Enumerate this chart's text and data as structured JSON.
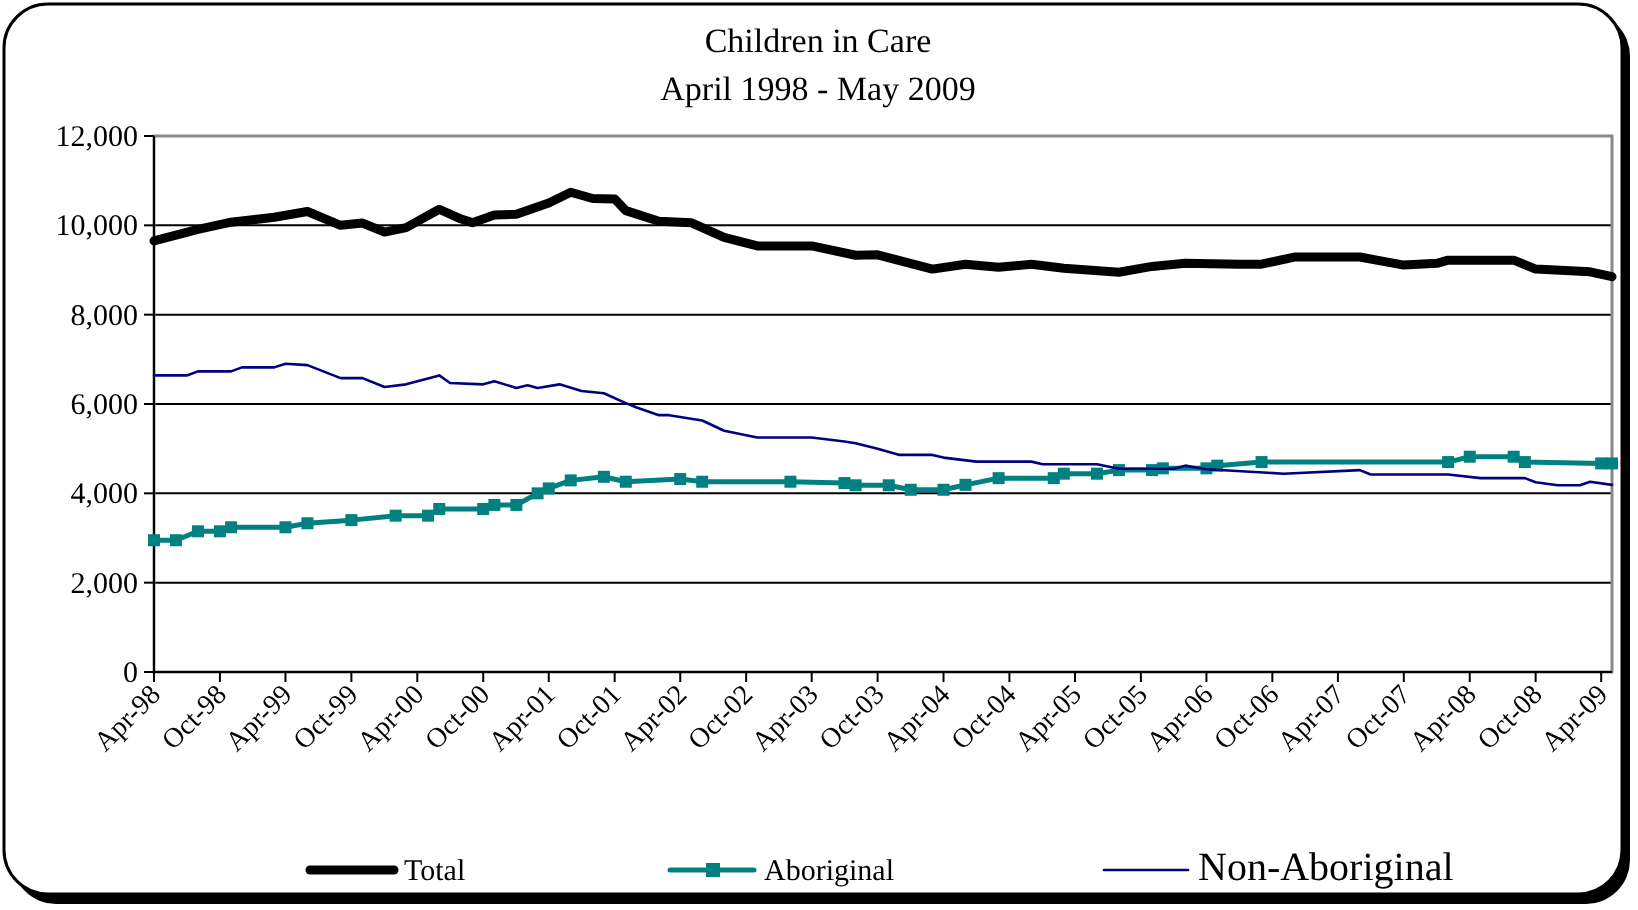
{
  "chart_data": {
    "type": "line",
    "title": "Children in Care",
    "subtitle": "April 1998 - May 2009",
    "xlim": [
      "1998-04",
      "2009-05"
    ],
    "xticks": [
      {
        "value": "1998-04",
        "label": "Apr-98"
      },
      {
        "value": "1998-10",
        "label": "Oct-98"
      },
      {
        "value": "1999-04",
        "label": "Apr-99"
      },
      {
        "value": "1999-10",
        "label": "Oct-99"
      },
      {
        "value": "2000-04",
        "label": "Apr-00"
      },
      {
        "value": "2000-10",
        "label": "Oct-00"
      },
      {
        "value": "2001-04",
        "label": "Apr-01"
      },
      {
        "value": "2001-10",
        "label": "Oct-01"
      },
      {
        "value": "2002-04",
        "label": "Apr-02"
      },
      {
        "value": "2002-10",
        "label": "Oct-02"
      },
      {
        "value": "2003-04",
        "label": "Apr-03"
      },
      {
        "value": "2003-10",
        "label": "Oct-03"
      },
      {
        "value": "2004-04",
        "label": "Apr-04"
      },
      {
        "value": "2004-10",
        "label": "Oct-04"
      },
      {
        "value": "2005-04",
        "label": "Apr-05"
      },
      {
        "value": "2005-10",
        "label": "Oct-05"
      },
      {
        "value": "2006-04",
        "label": "Apr-06"
      },
      {
        "value": "2006-10",
        "label": "Oct-06"
      },
      {
        "value": "2007-04",
        "label": "Apr-07"
      },
      {
        "value": "2007-10",
        "label": "Oct-07"
      },
      {
        "value": "2008-04",
        "label": "Apr-08"
      },
      {
        "value": "2008-10",
        "label": "Oct-08"
      },
      {
        "value": "2009-04",
        "label": "Apr-09"
      }
    ],
    "ylim": [
      0,
      12000
    ],
    "yticks": [
      {
        "value": 0,
        "label": "0"
      },
      {
        "value": 2000,
        "label": "2,000"
      },
      {
        "value": 4000,
        "label": "4,000"
      },
      {
        "value": 6000,
        "label": "6,000"
      },
      {
        "value": 8000,
        "label": "8,000"
      },
      {
        "value": 10000,
        "label": "10,000"
      },
      {
        "value": 12000,
        "label": "12,000"
      }
    ],
    "grid": "y",
    "legend": "bottom",
    "series": [
      {
        "name": "Total",
        "color": "#000000",
        "marker": "none",
        "x": [
          "1998-04",
          "1998-08",
          "1998-11",
          "1999-03",
          "1999-06",
          "1999-09",
          "1999-11",
          "2000-01",
          "2000-03",
          "2000-06",
          "2000-08",
          "2000-09",
          "2000-11",
          "2001-01",
          "2001-04",
          "2001-06",
          "2001-08",
          "2001-10",
          "2001-11",
          "2002-02",
          "2002-05",
          "2002-08",
          "2002-11",
          "2003-04",
          "2003-08",
          "2003-10",
          "2004-03",
          "2004-06",
          "2004-09",
          "2004-12",
          "2005-03",
          "2005-08",
          "2005-11",
          "2006-02",
          "2006-07",
          "2006-09",
          "2006-12",
          "2007-06",
          "2007-10",
          "2008-01",
          "2008-02",
          "2008-08",
          "2008-10",
          "2009-03",
          "2009-05"
        ],
        "values": [
          9650,
          9910,
          10070,
          10180,
          10310,
          10000,
          10050,
          9850,
          9950,
          10360,
          10140,
          10060,
          10230,
          10250,
          10500,
          10740,
          10600,
          10590,
          10330,
          10090,
          10060,
          9730,
          9540,
          9540,
          9330,
          9340,
          9020,
          9130,
          9060,
          9130,
          9040,
          8950,
          9080,
          9150,
          9130,
          9130,
          9290,
          9290,
          9110,
          9150,
          9220,
          9220,
          9020,
          8960,
          8850
        ]
      },
      {
        "name": "Aboriginal",
        "color": "#008080",
        "marker": "square",
        "x": [
          "1998-04",
          "1998-06",
          "1998-08",
          "1998-10",
          "1998-11",
          "1999-04",
          "1999-06",
          "1999-10",
          "2000-02",
          "2000-05",
          "2000-06",
          "2000-10",
          "2000-11",
          "2001-01",
          "2001-03",
          "2001-04",
          "2001-06",
          "2001-09",
          "2001-11",
          "2002-04",
          "2002-06",
          "2003-02",
          "2003-07",
          "2003-08",
          "2003-11",
          "2004-01",
          "2004-04",
          "2004-06",
          "2004-09",
          "2005-02",
          "2005-03",
          "2005-06",
          "2005-08",
          "2005-11",
          "2005-12",
          "2006-04",
          "2006-05",
          "2006-09",
          "2008-02",
          "2008-04",
          "2008-08",
          "2008-09",
          "2009-04",
          "2009-05"
        ],
        "values": [
          2950,
          2950,
          3150,
          3150,
          3240,
          3240,
          3330,
          3400,
          3500,
          3500,
          3650,
          3650,
          3740,
          3740,
          4000,
          4110,
          4290,
          4370,
          4260,
          4320,
          4260,
          4260,
          4230,
          4180,
          4180,
          4080,
          4080,
          4190,
          4340,
          4340,
          4440,
          4440,
          4520,
          4520,
          4560,
          4560,
          4620,
          4700,
          4700,
          4820,
          4820,
          4700,
          4670,
          4670
        ]
      },
      {
        "name": "Non-Aboriginal",
        "color": "#000080",
        "marker": "none",
        "x": [
          "1998-04",
          "1998-07",
          "1998-08",
          "1998-11",
          "1998-12",
          "1999-01",
          "1999-03",
          "1999-04",
          "1999-06",
          "1999-09",
          "1999-11",
          "2000-01",
          "2000-03",
          "2000-06",
          "2000-07",
          "2000-10",
          "2000-11",
          "2001-01",
          "2001-02",
          "2001-03",
          "2001-05",
          "2001-07",
          "2001-09",
          "2001-11",
          "2001-12",
          "2002-02",
          "2002-03",
          "2002-06",
          "2002-08",
          "2002-11",
          "2003-04",
          "2003-07",
          "2003-08",
          "2003-10",
          "2003-12",
          "2004-03",
          "2004-04",
          "2004-07",
          "2004-12",
          "2005-01",
          "2005-06",
          "2005-08",
          "2006-01",
          "2006-02",
          "2006-04",
          "2006-11",
          "2007-06",
          "2007-07",
          "2008-02",
          "2008-05",
          "2008-09",
          "2008-10",
          "2008-12",
          "2009-02",
          "2009-03",
          "2009-05"
        ],
        "values": [
          6640,
          6640,
          6730,
          6730,
          6820,
          6820,
          6820,
          6900,
          6870,
          6580,
          6580,
          6380,
          6440,
          6640,
          6470,
          6440,
          6510,
          6360,
          6420,
          6360,
          6440,
          6290,
          6240,
          6020,
          5920,
          5750,
          5750,
          5630,
          5400,
          5250,
          5250,
          5160,
          5120,
          5000,
          4860,
          4860,
          4800,
          4710,
          4710,
          4650,
          4650,
          4550,
          4550,
          4620,
          4540,
          4440,
          4520,
          4420,
          4420,
          4340,
          4340,
          4250,
          4180,
          4180,
          4260,
          4190
        ]
      }
    ]
  }
}
